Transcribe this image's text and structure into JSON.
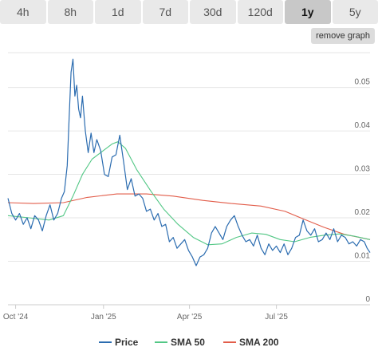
{
  "range_tabs": [
    {
      "label": "4h",
      "active": false
    },
    {
      "label": "8h",
      "active": false
    },
    {
      "label": "1d",
      "active": false
    },
    {
      "label": "7d",
      "active": false
    },
    {
      "label": "30d",
      "active": false
    },
    {
      "label": "120d",
      "active": false
    },
    {
      "label": "1y",
      "active": true
    },
    {
      "label": "5y",
      "active": false
    }
  ],
  "remove_graph_label": "remove graph",
  "chart_data": {
    "type": "line",
    "grid": true,
    "legend_position": "bottom",
    "xlim": [
      "2024-09-23",
      "2025-10-07"
    ],
    "ylim": [
      0,
      0.058
    ],
    "y_ticks": [
      {
        "value": 0,
        "label": "0"
      },
      {
        "value": 0.01,
        "label": "0.01"
      },
      {
        "value": 0.02,
        "label": "0.02"
      },
      {
        "value": 0.03,
        "label": "0.03"
      },
      {
        "value": 0.04,
        "label": "0.04"
      },
      {
        "value": 0.05,
        "label": "0.05"
      }
    ],
    "x_ticks": [
      {
        "value": "2024-10-01",
        "label": "Oct '24"
      },
      {
        "value": "2025-01-01",
        "label": "Jan '25"
      },
      {
        "value": "2025-04-01",
        "label": "Apr '25"
      },
      {
        "value": "2025-07-01",
        "label": "Jul '25"
      }
    ],
    "series": [
      {
        "name": "Price",
        "color": "#2b6cb0",
        "points": [
          [
            "2024-09-23",
            0.0245
          ],
          [
            "2024-09-27",
            0.021
          ],
          [
            "2024-10-01",
            0.0195
          ],
          [
            "2024-10-05",
            0.021
          ],
          [
            "2024-10-09",
            0.0185
          ],
          [
            "2024-10-13",
            0.02
          ],
          [
            "2024-10-17",
            0.0175
          ],
          [
            "2024-10-21",
            0.0205
          ],
          [
            "2024-10-25",
            0.0195
          ],
          [
            "2024-10-29",
            0.017
          ],
          [
            "2024-11-02",
            0.0205
          ],
          [
            "2024-11-06",
            0.023
          ],
          [
            "2024-11-10",
            0.0195
          ],
          [
            "2024-11-14",
            0.021
          ],
          [
            "2024-11-18",
            0.0245
          ],
          [
            "2024-11-21",
            0.026
          ],
          [
            "2024-11-24",
            0.032
          ],
          [
            "2024-11-26",
            0.043
          ],
          [
            "2024-11-28",
            0.0535
          ],
          [
            "2024-11-30",
            0.0565
          ],
          [
            "2024-12-02",
            0.048
          ],
          [
            "2024-12-04",
            0.0505
          ],
          [
            "2024-12-06",
            0.045
          ],
          [
            "2024-12-08",
            0.043
          ],
          [
            "2024-12-10",
            0.048
          ],
          [
            "2024-12-13",
            0.04
          ],
          [
            "2024-12-16",
            0.035
          ],
          [
            "2024-12-19",
            0.0395
          ],
          [
            "2024-12-22",
            0.035
          ],
          [
            "2024-12-25",
            0.038
          ],
          [
            "2024-12-29",
            0.0355
          ],
          [
            "2025-01-02",
            0.03
          ],
          [
            "2025-01-06",
            0.0295
          ],
          [
            "2025-01-10",
            0.034
          ],
          [
            "2025-01-14",
            0.0345
          ],
          [
            "2025-01-18",
            0.039
          ],
          [
            "2025-01-22",
            0.033
          ],
          [
            "2025-01-26",
            0.0265
          ],
          [
            "2025-01-30",
            0.029
          ],
          [
            "2025-02-03",
            0.025
          ],
          [
            "2025-02-07",
            0.0255
          ],
          [
            "2025-02-11",
            0.0245
          ],
          [
            "2025-02-15",
            0.0215
          ],
          [
            "2025-02-19",
            0.022
          ],
          [
            "2025-02-23",
            0.0195
          ],
          [
            "2025-02-27",
            0.021
          ],
          [
            "2025-03-03",
            0.018
          ],
          [
            "2025-03-07",
            0.0185
          ],
          [
            "2025-03-11",
            0.0145
          ],
          [
            "2025-03-15",
            0.0155
          ],
          [
            "2025-03-19",
            0.013
          ],
          [
            "2025-03-23",
            0.014
          ],
          [
            "2025-03-27",
            0.015
          ],
          [
            "2025-03-31",
            0.0125
          ],
          [
            "2025-04-04",
            0.011
          ],
          [
            "2025-04-08",
            0.009
          ],
          [
            "2025-04-12",
            0.011
          ],
          [
            "2025-04-16",
            0.0115
          ],
          [
            "2025-04-20",
            0.013
          ],
          [
            "2025-04-24",
            0.0165
          ],
          [
            "2025-04-28",
            0.018
          ],
          [
            "2025-05-02",
            0.0165
          ],
          [
            "2025-05-06",
            0.015
          ],
          [
            "2025-05-10",
            0.018
          ],
          [
            "2025-05-14",
            0.0195
          ],
          [
            "2025-05-18",
            0.0205
          ],
          [
            "2025-05-22",
            0.018
          ],
          [
            "2025-05-26",
            0.016
          ],
          [
            "2025-05-30",
            0.0145
          ],
          [
            "2025-06-03",
            0.015
          ],
          [
            "2025-06-07",
            0.0135
          ],
          [
            "2025-06-11",
            0.016
          ],
          [
            "2025-06-15",
            0.013
          ],
          [
            "2025-06-19",
            0.0115
          ],
          [
            "2025-06-23",
            0.014
          ],
          [
            "2025-06-27",
            0.0125
          ],
          [
            "2025-07-01",
            0.0135
          ],
          [
            "2025-07-05",
            0.012
          ],
          [
            "2025-07-09",
            0.014
          ],
          [
            "2025-07-13",
            0.0115
          ],
          [
            "2025-07-17",
            0.013
          ],
          [
            "2025-07-21",
            0.0155
          ],
          [
            "2025-07-25",
            0.016
          ],
          [
            "2025-07-29",
            0.0195
          ],
          [
            "2025-08-02",
            0.017
          ],
          [
            "2025-08-06",
            0.016
          ],
          [
            "2025-08-10",
            0.0175
          ],
          [
            "2025-08-14",
            0.0145
          ],
          [
            "2025-08-18",
            0.015
          ],
          [
            "2025-08-22",
            0.0165
          ],
          [
            "2025-08-26",
            0.015
          ],
          [
            "2025-08-30",
            0.0175
          ],
          [
            "2025-09-03",
            0.0145
          ],
          [
            "2025-09-07",
            0.016
          ],
          [
            "2025-09-11",
            0.0155
          ],
          [
            "2025-09-15",
            0.014
          ],
          [
            "2025-09-19",
            0.0145
          ],
          [
            "2025-09-23",
            0.0135
          ],
          [
            "2025-09-27",
            0.015
          ],
          [
            "2025-10-01",
            0.0145
          ],
          [
            "2025-10-04",
            0.013
          ],
          [
            "2025-10-07",
            0.012
          ]
        ]
      },
      {
        "name": "SMA 50",
        "color": "#52c785",
        "points": [
          [
            "2024-09-23",
            0.0205
          ],
          [
            "2024-10-15",
            0.02
          ],
          [
            "2024-11-05",
            0.0195
          ],
          [
            "2024-11-20",
            0.0205
          ],
          [
            "2024-11-30",
            0.025
          ],
          [
            "2024-12-10",
            0.03
          ],
          [
            "2024-12-20",
            0.0335
          ],
          [
            "2025-01-01",
            0.0355
          ],
          [
            "2025-01-10",
            0.037
          ],
          [
            "2025-01-16",
            0.0375
          ],
          [
            "2025-01-24",
            0.036
          ],
          [
            "2025-02-05",
            0.031
          ],
          [
            "2025-02-20",
            0.026
          ],
          [
            "2025-03-05",
            0.022
          ],
          [
            "2025-03-20",
            0.0185
          ],
          [
            "2025-04-05",
            0.0155
          ],
          [
            "2025-04-20",
            0.0138
          ],
          [
            "2025-05-05",
            0.014
          ],
          [
            "2025-05-20",
            0.0155
          ],
          [
            "2025-06-05",
            0.0165
          ],
          [
            "2025-06-20",
            0.0162
          ],
          [
            "2025-07-05",
            0.015
          ],
          [
            "2025-07-20",
            0.0145
          ],
          [
            "2025-08-05",
            0.0155
          ],
          [
            "2025-08-20",
            0.016
          ],
          [
            "2025-09-05",
            0.0163
          ],
          [
            "2025-09-20",
            0.0158
          ],
          [
            "2025-10-07",
            0.015
          ]
        ]
      },
      {
        "name": "SMA 200",
        "color": "#e25d4a",
        "points": [
          [
            "2024-09-23",
            0.0235
          ],
          [
            "2024-10-20",
            0.0233
          ],
          [
            "2024-11-20",
            0.0235
          ],
          [
            "2024-12-15",
            0.0247
          ],
          [
            "2025-01-15",
            0.0255
          ],
          [
            "2025-02-15",
            0.0255
          ],
          [
            "2025-03-15",
            0.025
          ],
          [
            "2025-04-15",
            0.024
          ],
          [
            "2025-05-15",
            0.0233
          ],
          [
            "2025-06-15",
            0.0227
          ],
          [
            "2025-07-10",
            0.0215
          ],
          [
            "2025-08-01",
            0.0195
          ],
          [
            "2025-08-20",
            0.0178
          ],
          [
            "2025-09-10",
            0.0162
          ],
          [
            "2025-10-07",
            0.015
          ]
        ]
      }
    ]
  }
}
